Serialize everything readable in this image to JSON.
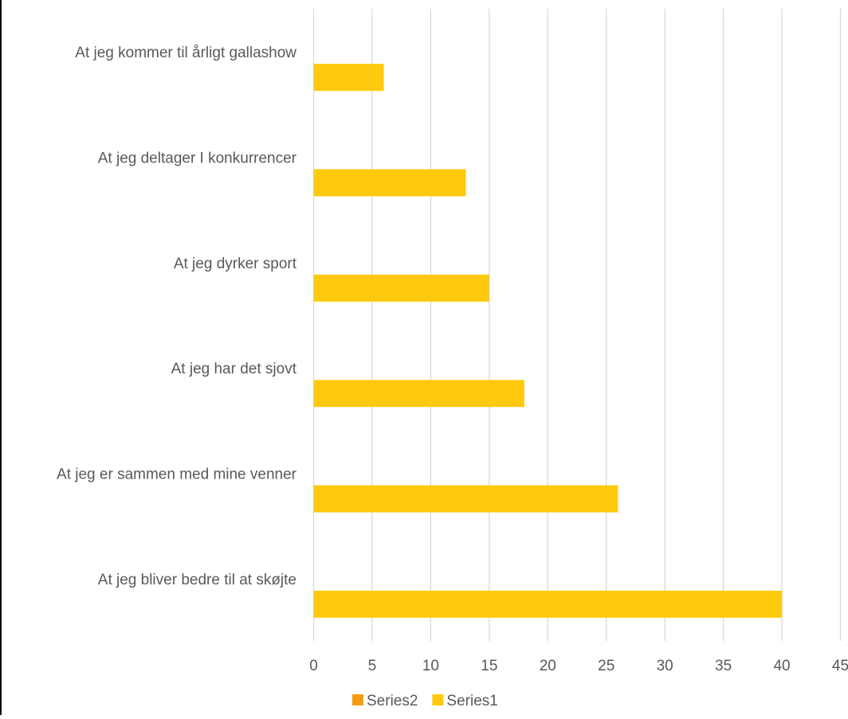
{
  "chart_data": {
    "type": "bar",
    "orientation": "horizontal",
    "title": "",
    "xlabel": "",
    "ylabel": "",
    "categories": [
      "At jeg kommer til årligt gallashow",
      "At jeg deltager I konkurrencer",
      "At jeg dyrker sport",
      "At jeg har det sjovt",
      "At jeg er sammen med mine venner",
      "At jeg bliver bedre til at skøjte"
    ],
    "series": [
      {
        "name": "Series2",
        "color": "#F39C12",
        "values": [
          null,
          null,
          null,
          null,
          null,
          null
        ]
      },
      {
        "name": "Series1",
        "color": "#FFC90E",
        "values": [
          6,
          13,
          15,
          18,
          26,
          40
        ]
      }
    ],
    "xlim": [
      0,
      45
    ],
    "xticks": [
      "0",
      "5",
      "10",
      "15",
      "20",
      "25",
      "30",
      "35",
      "40",
      "45"
    ],
    "grid": true,
    "legend": "bottom-center"
  }
}
